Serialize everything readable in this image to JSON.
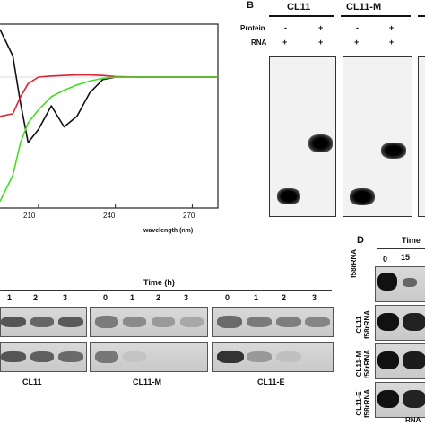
{
  "panelB": {
    "letter": "B",
    "groups": [
      "CL11",
      "CL11-M"
    ],
    "row_labels": {
      "protein": "Protein",
      "rna": "RNA"
    },
    "protein_marks": [
      "-",
      "+",
      "-",
      "+"
    ],
    "rna_marks": [
      "+",
      "+",
      "+",
      "+"
    ]
  },
  "cd_plot": {
    "xlabel": "wavelength (nm)",
    "ticks": [
      "210",
      "240",
      "270"
    ]
  },
  "panelC": {
    "time_label": "Time (h)",
    "time_ticks": [
      "1",
      "2",
      "3",
      "0",
      "1",
      "2",
      "3",
      "0",
      "1",
      "2",
      "3"
    ],
    "gel_labels": [
      "CL11",
      "CL11-M",
      "CL11-E"
    ]
  },
  "panelD": {
    "letter": "D",
    "time_label": "Time",
    "time_ticks": [
      "0",
      "15"
    ],
    "row_labels": [
      "f58rRNA",
      "CL11\nf58rRNA",
      "CL11-M\nf58rRNA",
      "CL11-E\nf58rRNA"
    ],
    "bottom_label": "RNA"
  },
  "chart_data": {
    "type": "line",
    "title": "",
    "xlabel": "wavelength (nm)",
    "ylabel": "",
    "xlim": [
      195,
      280
    ],
    "ylim": [
      -1,
      1
    ],
    "x_ticks": [
      210,
      240,
      270
    ],
    "series": [
      {
        "color": "#111111",
        "x": [
          195,
          200,
          203,
          206,
          210,
          215,
          220,
          225,
          230,
          235,
          240,
          250,
          260,
          280
        ],
        "y": [
          0.9,
          0.4,
          -0.2,
          -0.5,
          -0.4,
          -0.22,
          -0.38,
          -0.3,
          -0.12,
          -0.02,
          0.0,
          0.0,
          0.0,
          0.0
        ]
      },
      {
        "color": "#dd2233",
        "x": [
          195,
          200,
          203,
          206,
          210,
          215,
          220,
          225,
          230,
          235,
          240,
          250,
          260,
          280
        ],
        "y": [
          -0.3,
          -0.28,
          -0.15,
          -0.05,
          0.0,
          0.02,
          0.03,
          0.04,
          0.04,
          0.03,
          0.01,
          0.0,
          0.0,
          0.0
        ]
      },
      {
        "color": "#44dd22",
        "x": [
          195,
          200,
          203,
          206,
          210,
          215,
          220,
          225,
          230,
          235,
          240,
          250,
          260,
          280
        ],
        "y": [
          -0.95,
          -0.75,
          -0.5,
          -0.35,
          -0.25,
          -0.15,
          -0.1,
          -0.06,
          -0.03,
          -0.01,
          0.0,
          0.0,
          0.0,
          0.0
        ]
      }
    ]
  }
}
